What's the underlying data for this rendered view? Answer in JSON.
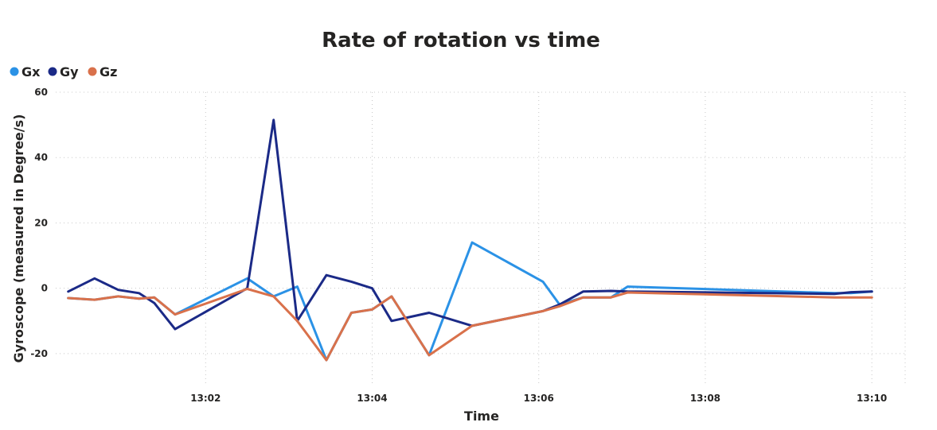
{
  "chart_data": {
    "type": "line",
    "title": "Rate of rotation vs time",
    "xlabel": "Time",
    "ylabel": "Gyroscope (measured in Degree/s)",
    "x_ticks": [
      "13:02",
      "13:04",
      "13:06",
      "13:08",
      "13:10"
    ],
    "y_ticks": [
      60,
      40,
      20,
      0,
      -20
    ],
    "xlim": [
      "13:00:12",
      "13:10:24"
    ],
    "ylim": [
      -30,
      60
    ],
    "grid": true,
    "legend_position": "top-left",
    "x": [
      "13:00:21",
      "13:00:40",
      "13:00:57",
      "13:01:12",
      "13:01:23",
      "13:01:38",
      "13:02:30",
      "13:02:49",
      "13:03:06",
      "13:03:27",
      "13:03:45",
      "13:04:00",
      "13:04:14",
      "13:04:41",
      "13:05:12",
      "13:06:03",
      "13:06:15",
      "13:06:32",
      "13:06:52",
      "13:07:04",
      "13:09:33",
      "13:09:45",
      "13:10:00"
    ],
    "series": [
      {
        "name": "Gx",
        "color": "#2B92E6",
        "values": [
          -3,
          -3.5,
          -2.5,
          -3.2,
          -2.8,
          -8,
          3,
          -2.5,
          0.5,
          -22,
          -7.5,
          -6.5,
          -2.5,
          -20.5,
          14,
          2,
          -5,
          -2.8,
          -2.8,
          0.5,
          -1.5,
          -1.5,
          -1
        ]
      },
      {
        "name": "Gy",
        "color": "#1B2A87",
        "values": [
          -1,
          3,
          -0.5,
          -1.5,
          -4.5,
          -12.5,
          0,
          51.5,
          -10,
          4,
          2,
          0,
          -10,
          -7.5,
          -11.5,
          -7,
          -5,
          -1,
          -0.8,
          -1,
          -1.7,
          -1.2,
          -1
        ]
      },
      {
        "name": "Gz",
        "color": "#D9714B",
        "values": [
          -3,
          -3.5,
          -2.5,
          -3.2,
          -2.8,
          -8,
          -0.2,
          -2.5,
          -10,
          -22,
          -7.5,
          -6.5,
          -2.5,
          -20.5,
          -11.5,
          -7,
          -5.5,
          -2.8,
          -2.8,
          -1.3,
          -2.8,
          -2.8,
          -2.8
        ]
      }
    ]
  }
}
